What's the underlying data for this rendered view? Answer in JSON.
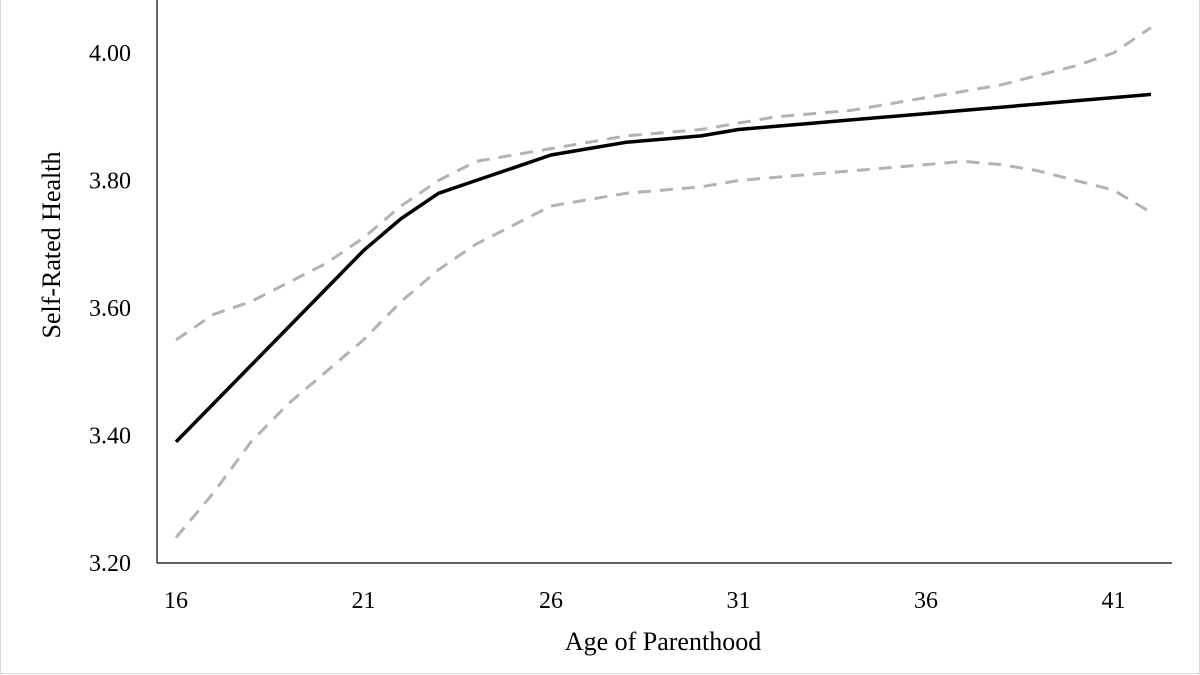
{
  "chart_data": {
    "type": "line",
    "title": "",
    "xlabel": "Age of Parenthood",
    "ylabel": "Self-Rated Health",
    "xlim": [
      16,
      42
    ],
    "ylim": [
      3.2,
      4.0
    ],
    "x_ticks": [
      "16",
      "21",
      "26",
      "31",
      "36",
      "41"
    ],
    "y_ticks": [
      "3.20",
      "3.40",
      "3.60",
      "3.80",
      "4.00"
    ],
    "grid": false,
    "legend": "none",
    "x": [
      16,
      17,
      18,
      19,
      20,
      21,
      22,
      23,
      24,
      25,
      26,
      27,
      28,
      29,
      30,
      31,
      32,
      33,
      34,
      35,
      36,
      37,
      38,
      39,
      40,
      41,
      42
    ],
    "series": [
      {
        "role": "estimate",
        "style": "solid",
        "color": "#000000",
        "values": [
          3.39,
          3.45,
          3.51,
          3.57,
          3.63,
          3.69,
          3.74,
          3.78,
          3.8,
          3.82,
          3.84,
          3.85,
          3.86,
          3.865,
          3.87,
          3.88,
          3.885,
          3.89,
          3.895,
          3.9,
          3.905,
          3.91,
          3.915,
          3.92,
          3.925,
          3.93,
          3.935
        ]
      },
      {
        "role": "upper",
        "style": "dashed",
        "color": "#b3b3b3",
        "values": [
          3.55,
          3.59,
          3.61,
          3.64,
          3.67,
          3.71,
          3.76,
          3.8,
          3.83,
          3.84,
          3.85,
          3.86,
          3.87,
          3.875,
          3.88,
          3.89,
          3.9,
          3.905,
          3.91,
          3.92,
          3.93,
          3.94,
          3.95,
          3.965,
          3.98,
          4.0,
          4.04
        ]
      },
      {
        "role": "lower",
        "style": "dashed",
        "color": "#b3b3b3",
        "values": [
          3.24,
          3.31,
          3.39,
          3.45,
          3.5,
          3.55,
          3.61,
          3.66,
          3.7,
          3.73,
          3.76,
          3.77,
          3.78,
          3.785,
          3.79,
          3.8,
          3.805,
          3.81,
          3.815,
          3.82,
          3.825,
          3.83,
          3.825,
          3.815,
          3.8,
          3.785,
          3.75
        ]
      }
    ]
  }
}
